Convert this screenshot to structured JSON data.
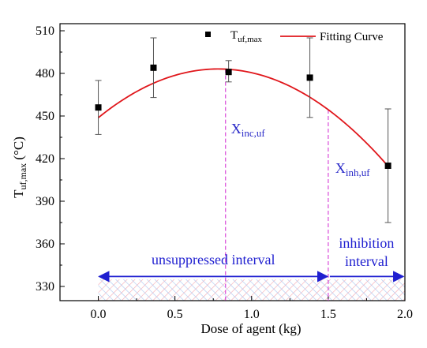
{
  "chart_data": {
    "type": "scatter",
    "xlabel": "Dose of agent (kg)",
    "ylabel_main": "T",
    "ylabel_sub": "uf,max",
    "ylabel_unit": " (°C)",
    "xlim": [
      -0.25,
      2.0
    ],
    "ylim": [
      320,
      515
    ],
    "x_ticks": [
      0.0,
      0.5,
      1.0,
      1.5,
      2.0
    ],
    "x_tick_labels": [
      "0.0",
      "0.5",
      "1.0",
      "1.5",
      "2.0"
    ],
    "y_ticks": [
      330,
      360,
      390,
      420,
      450,
      480,
      510
    ],
    "y_tick_labels": [
      "330",
      "360",
      "390",
      "420",
      "450",
      "480",
      "510"
    ],
    "grid": false,
    "legend_position": "top-right",
    "series": [
      {
        "name": "T",
        "name_sub": "uf,max",
        "kind": "points-with-error-bars",
        "color": "#000000",
        "x": [
          0.0,
          0.36,
          0.85,
          1.38,
          1.89
        ],
        "y": [
          456,
          484,
          481,
          477,
          415
        ],
        "y_err_low": [
          437,
          463,
          474,
          449,
          375
        ],
        "y_err_high": [
          475,
          505,
          489,
          505,
          455
        ]
      },
      {
        "name": "Fitting Curve",
        "kind": "quadratic-fit",
        "color": "#e0161b",
        "x_range": [
          0.0,
          1.89
        ],
        "coefficients": {
          "a": -55.9,
          "b": 87.6,
          "c": 448.8
        }
      }
    ],
    "annotations": {
      "x_inc": {
        "x": 0.83,
        "label_main": "X",
        "label_sub": "inc,uf",
        "color": "#8a2be2"
      },
      "x_inh": {
        "x": 1.5,
        "label_main": "X",
        "label_sub": "inh,uf",
        "color": "#8a2be2"
      },
      "interval_unsuppressed": {
        "x_from": 0.0,
        "x_to": 1.5,
        "y": 337,
        "label": "unsuppressed interval",
        "color": "#1f1fd0"
      },
      "interval_inhibition": {
        "x_from": 1.5,
        "x_to": 2.0,
        "y": 337,
        "label_line1": "inhibition",
        "label_line2": "interval",
        "color": "#1f1fd0"
      },
      "hatch_band": {
        "x_from": 0.0,
        "x_to": 2.0,
        "y_from": 320,
        "y_to": 335
      }
    }
  }
}
